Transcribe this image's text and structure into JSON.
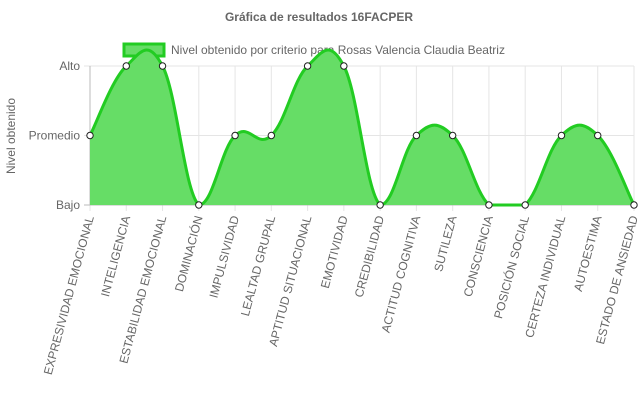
{
  "chart_data": {
    "type": "area",
    "title": "Gráfica de resultados 16FACPER",
    "ylabel": "Nivel obtenido",
    "xlabel": "",
    "y_levels": [
      "Bajo",
      "Promedio",
      "Alto"
    ],
    "ylim": [
      0,
      2
    ],
    "grid": true,
    "legend_position": "top",
    "categories": [
      "EXPRESIVIDAD EMOCIONAL",
      "INTELIGENCIA",
      "ESTABILIDAD EMOCIONAL",
      "DOMINACIÓN",
      "IMPULSIVIDAD",
      "LEALTAD GRUPAL",
      "APTITUD SITUACIONAL",
      "EMOTIVIDAD",
      "CREDIBILIDAD",
      "ACTITUD COGNITIVA",
      "SUTILEZA",
      "CONSCIENCIA",
      "POSICIÓN SOCIAL",
      "CERTEZA INDIVIDUAL",
      "AUTOESTIMA",
      "ESTADO DE ANSIEDAD"
    ],
    "series": [
      {
        "name": "Nivel obtenido por criterio para Rosas Valencia Claudia Beatriz",
        "values": [
          1,
          2,
          2,
          0,
          1,
          1,
          2,
          2,
          0,
          1,
          1,
          0,
          0,
          1,
          1,
          0
        ],
        "fill_color": "#66dd66",
        "line_color": "#22cc22"
      }
    ]
  }
}
